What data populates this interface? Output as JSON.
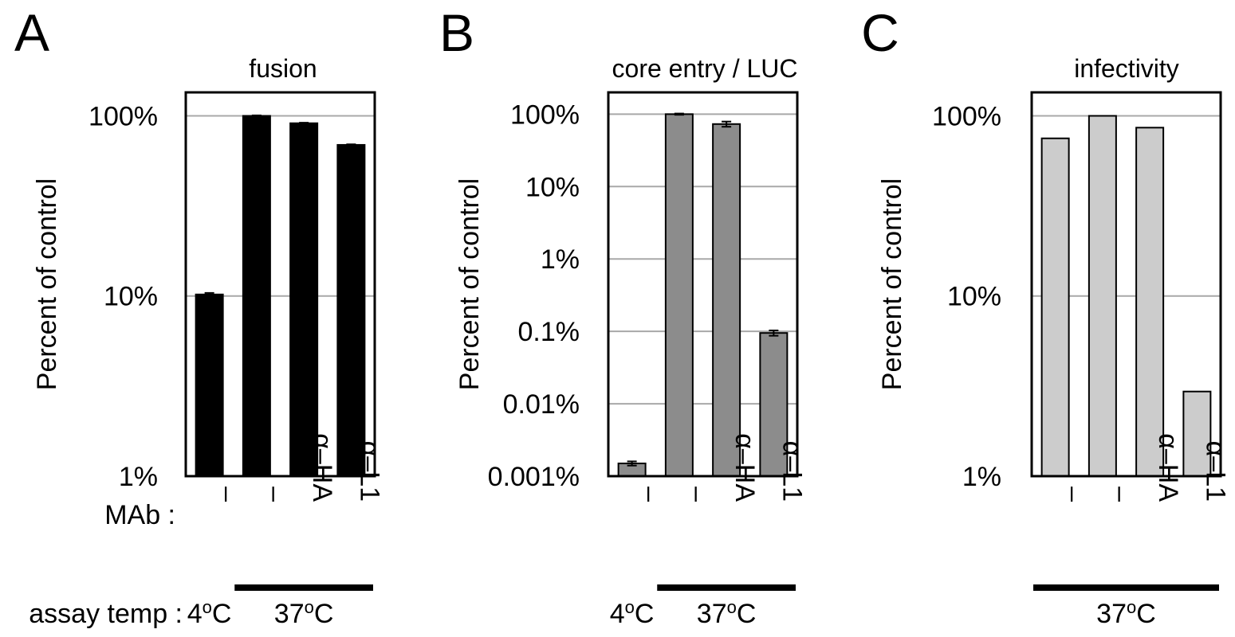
{
  "figure": {
    "row_labels": {
      "mab": "MAb :",
      "assay_temp": "assay temp :"
    }
  },
  "chart_data": [
    {
      "type": "bar",
      "panel_letter": "A",
      "title": "fusion",
      "ylabel": "Percent of control",
      "yscale": "log",
      "ylim": [
        1,
        135
      ],
      "yticks": [
        1,
        10,
        100
      ],
      "ytick_labels": [
        "1%",
        "10%",
        "100%"
      ],
      "grid": true,
      "bar_color": "#000000",
      "categories": [
        "–",
        "–",
        "α–HA",
        "α–L1"
      ],
      "values": [
        10.2,
        100,
        91,
        69
      ],
      "errors": [
        0.2,
        0.6,
        0.6,
        0.5
      ],
      "show_error_bars": true,
      "assay_temp": [
        "4ºC",
        "37ºC"
      ],
      "assay_temp_marker": [
        "4",
        "o",
        "C",
        "37",
        "o",
        "C"
      ],
      "groups": [
        {
          "label": "4",
          "sup": "o",
          "suffix": "C",
          "from": 0,
          "to": 0,
          "underline": false
        },
        {
          "label": "37",
          "sup": "o",
          "suffix": "C",
          "from": 1,
          "to": 3,
          "underline": true
        }
      ]
    },
    {
      "type": "bar",
      "panel_letter": "B",
      "title": "core entry / LUC",
      "ylabel": "Percent of control",
      "yscale": "log",
      "ylim": [
        0.001,
        200
      ],
      "yticks": [
        0.001,
        0.01,
        0.1,
        1,
        10,
        100
      ],
      "ytick_labels": [
        "0.001%",
        "0.01%",
        "0.1%",
        "1%",
        "10%",
        "100%"
      ],
      "grid": true,
      "bar_color": "#8c8c8c",
      "categories": [
        "–",
        "–",
        "α–HA",
        "α–L1"
      ],
      "values": [
        0.0015,
        100,
        73,
        0.095
      ],
      "errors": [
        0.0001,
        2,
        6,
        0.008
      ],
      "show_error_bars": true,
      "groups": [
        {
          "label": "4",
          "sup": "o",
          "suffix": "C",
          "from": 0,
          "to": 0,
          "underline": false
        },
        {
          "label": "37",
          "sup": "o",
          "suffix": "C",
          "from": 1,
          "to": 3,
          "underline": true
        }
      ]
    },
    {
      "type": "bar",
      "panel_letter": "C",
      "title": "infectivity",
      "ylabel": "Percent of control",
      "yscale": "log",
      "ylim": [
        1,
        135
      ],
      "yticks": [
        1,
        10,
        100
      ],
      "ytick_labels": [
        "1%",
        "10%",
        "100%"
      ],
      "grid": true,
      "bar_color": "#cccccc",
      "categories": [
        "–",
        "–",
        "α–HA",
        "α–L1"
      ],
      "values": [
        75,
        100,
        86,
        2.95
      ],
      "show_error_bars": false,
      "groups": [
        {
          "label": "37",
          "sup": "o",
          "suffix": "C",
          "from": 0,
          "to": 3,
          "underline": true
        }
      ]
    }
  ]
}
